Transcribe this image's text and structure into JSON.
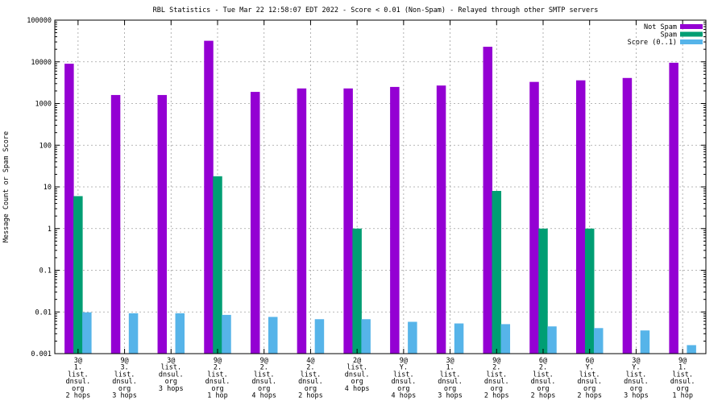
{
  "chart_data": {
    "type": "bar",
    "title": "RBL Statistics - Tue Mar 22 12:58:07 EDT 2022 - Score < 0.01 (Non-Spam) - Relayed through other SMTP servers",
    "xlabel": "",
    "ylabel": "Message Count or Spam Score",
    "yscale": "log",
    "ylim": [
      0.001,
      100000
    ],
    "ytick_labels": [
      "0.001",
      "0.01",
      "0.1",
      "1",
      "10",
      "100",
      "1000",
      "10000",
      "100000"
    ],
    "grid": true,
    "legend_position": "top-right",
    "categories": [
      [
        "3@",
        "1.",
        "list.",
        "dnsul.",
        "org",
        "2 hops"
      ],
      [
        "9@",
        "3.",
        "list.",
        "dnsul.",
        "org",
        "3 hops"
      ],
      [
        "3@",
        "list.",
        "dnsul.",
        "org",
        "3 hops"
      ],
      [
        "9@",
        "2.",
        "list.",
        "dnsul.",
        "org",
        "1 hop"
      ],
      [
        "9@",
        "2.",
        "list.",
        "dnsul.",
        "org",
        "4 hops"
      ],
      [
        "4@",
        "2.",
        "list.",
        "dnsul.",
        "org",
        "2 hops"
      ],
      [
        "2@",
        "list.",
        "dnsul.",
        "org",
        "4 hops"
      ],
      [
        "9@",
        "Y.",
        "list.",
        "dnsul.",
        "org",
        "4 hops"
      ],
      [
        "3@",
        "1.",
        "list.",
        "dnsul.",
        "org",
        "3 hops"
      ],
      [
        "9@",
        "2.",
        "list.",
        "dnsul.",
        "org",
        "2 hops"
      ],
      [
        "6@",
        "2.",
        "list.",
        "dnsul.",
        "org",
        "2 hops"
      ],
      [
        "6@",
        "Y.",
        "list.",
        "dnsul.",
        "org",
        "2 hops"
      ],
      [
        "3@",
        "Y.",
        "list.",
        "dnsul.",
        "org",
        "3 hops"
      ],
      [
        "9@",
        "1.",
        "list.",
        "dnsul.",
        "org",
        "1 hop"
      ]
    ],
    "series": [
      {
        "name": "Not Spam",
        "color": "#9400d3",
        "values": [
          9000,
          1600,
          1600,
          32000,
          1900,
          2300,
          2300,
          2500,
          2700,
          23000,
          3300,
          3600,
          4100,
          9500
        ]
      },
      {
        "name": "Spam",
        "color": "#009e73",
        "values": [
          6,
          null,
          null,
          18,
          null,
          null,
          1,
          null,
          null,
          8,
          1,
          1,
          null,
          null
        ]
      },
      {
        "name": "Score (0..1)",
        "color": "#56b4e9",
        "values": [
          0.0098,
          0.0093,
          0.0093,
          0.0085,
          0.0076,
          0.0067,
          0.0067,
          0.0058,
          0.0053,
          0.0051,
          0.0045,
          0.0041,
          0.0036,
          0.0016
        ]
      }
    ]
  }
}
